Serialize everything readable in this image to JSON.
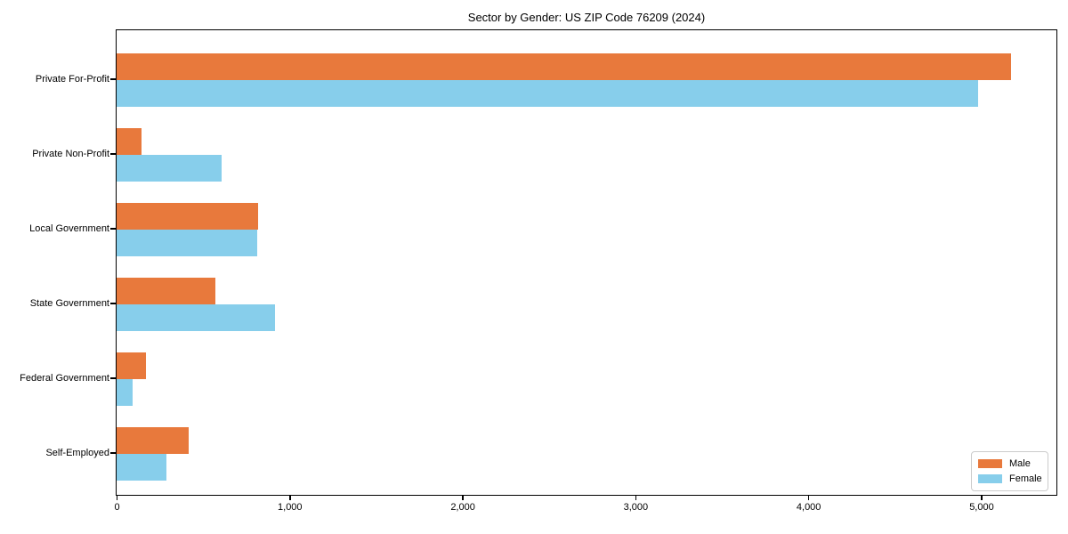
{
  "figure": {
    "title": "Sector by Gender: US ZIP Code 76209 (2024)"
  },
  "chart_data": {
    "type": "bar",
    "orientation": "horizontal",
    "title": "Sector by Gender: US ZIP Code 76209 (2024)",
    "categories": [
      "Private For-Profit",
      "Private Non-Profit",
      "Local Government",
      "State Government",
      "Federal Government",
      "Self-Employed"
    ],
    "series": [
      {
        "name": "Male",
        "color": "#E8793C",
        "values": [
          5170,
          145,
          820,
          570,
          170,
          415
        ]
      },
      {
        "name": "Female",
        "color": "#87CEEB",
        "values": [
          4980,
          605,
          810,
          915,
          90,
          290
        ]
      }
    ],
    "xlim": [
      0,
      5430
    ],
    "xticks": {
      "values": [
        0,
        1000,
        2000,
        3000,
        4000,
        5000
      ],
      "labels": [
        "0",
        "1,000",
        "2,000",
        "3,000",
        "4,000",
        "5,000"
      ]
    },
    "ylabel": "",
    "xlabel": "",
    "grid": false,
    "legend": {
      "position": "lower right",
      "entries": [
        "Male",
        "Female"
      ]
    }
  }
}
